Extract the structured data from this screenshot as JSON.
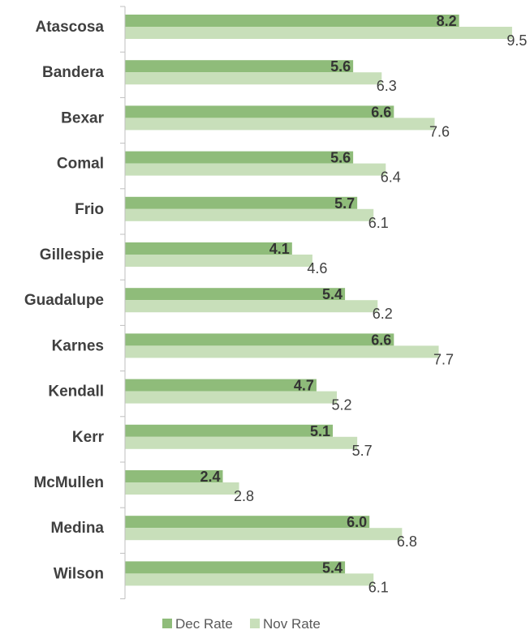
{
  "chart_data": {
    "type": "bar",
    "orientation": "horizontal",
    "categories": [
      "Atascosa",
      "Bandera",
      "Bexar",
      "Comal",
      "Frio",
      "Gillespie",
      "Guadalupe",
      "Karnes",
      "Kendall",
      "Kerr",
      "McMullen",
      "Medina",
      "Wilson"
    ],
    "series": [
      {
        "name": "Dec Rate",
        "values": [
          8.2,
          5.6,
          6.6,
          5.6,
          5.7,
          4.1,
          5.4,
          6.6,
          4.7,
          5.1,
          2.4,
          6.0,
          5.4
        ],
        "labels": [
          "8.2",
          "5.6",
          "6.6",
          "5.6",
          "5.7",
          "4.1",
          "5.4",
          "6.6",
          "4.7",
          "5.1",
          "2.4",
          "6.0",
          "5.4"
        ],
        "color": "#8fbc7a"
      },
      {
        "name": "Nov Rate",
        "values": [
          9.5,
          6.3,
          7.6,
          6.4,
          6.1,
          4.6,
          6.2,
          7.7,
          5.2,
          5.7,
          2.8,
          6.8,
          6.1
        ],
        "labels": [
          "9.5",
          "6.3",
          "7.6",
          "6.4",
          "6.1",
          "4.6",
          "6.2",
          "7.7",
          "5.2",
          "5.7",
          "2.8",
          "6.8",
          "6.1"
        ],
        "color": "#c8dfba"
      }
    ],
    "xlim": [
      0,
      9.5
    ],
    "grid": false,
    "legend": "bottom",
    "axis_color": "#bfbfbf"
  }
}
